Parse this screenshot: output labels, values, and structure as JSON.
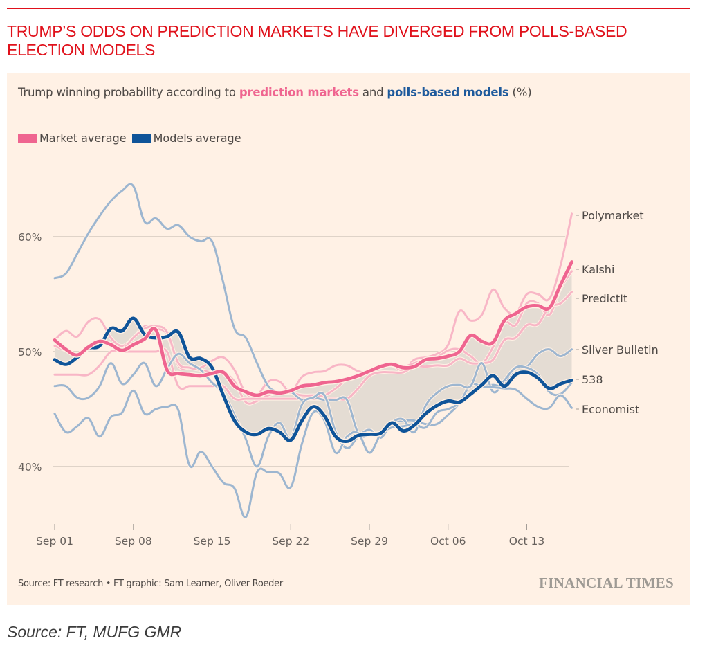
{
  "headline": "TRUMP’S ODDS ON PREDICTION MARKETS HAVE DIVERGED FROM POLLS-BASED ELECTION MODELS",
  "subtitle": {
    "prefix": "Trump winning probability according to ",
    "highlight_markets": "prediction markets",
    "middle": " and ",
    "highlight_models": "polls-based models",
    "suffix": " (%)"
  },
  "legend": [
    {
      "label": "Market average",
      "color": "#ef6590"
    },
    {
      "label": "Models average",
      "color": "#0f5499"
    }
  ],
  "colors": {
    "background": "#fff1e5",
    "headline": "#e0111b",
    "market_avg": "#ef6590",
    "market_individual": "#f8b6c6",
    "models_avg": "#0f5499",
    "models_individual": "#9db6d0",
    "gap_fill": "#e4dcd3",
    "gridline": "#ccc1b7"
  },
  "source_text": "Source: FT research • FT graphic: Sam Learner, Oliver Roeder",
  "ft_logo": "FINANCIAL TIMES",
  "outer_source": "Source: FT, MUFG GMR",
  "chart_data": {
    "type": "line",
    "title": "Trump winning probability according to prediction markets and polls-based models (%)",
    "xlabel": "",
    "ylabel": "",
    "x_unit": "days since Sep 01",
    "x_range": [
      0,
      46
    ],
    "ylim": [
      35,
      63
    ],
    "yticks": [
      40,
      50,
      60
    ],
    "ytick_labels": [
      "40%",
      "50%",
      "60%"
    ],
    "xticks": [
      0,
      7,
      14,
      21,
      28,
      35,
      42
    ],
    "xtick_labels": [
      "Sep 01",
      "Sep 08",
      "Sep 15",
      "Sep 22",
      "Sep 29",
      "Oct 06",
      "Oct 13"
    ],
    "grid": "horizontal",
    "legend_position": "top-left",
    "shaded_band": "between Market average and Models average",
    "series": [
      {
        "name": "Polymarket",
        "group": "market",
        "x": [
          0,
          1,
          2,
          3,
          4,
          5,
          6,
          7,
          8,
          9,
          10,
          11,
          12,
          13,
          14,
          15,
          16,
          17,
          18,
          19,
          20,
          21,
          22,
          23,
          24,
          25,
          26,
          27,
          28,
          29,
          30,
          31,
          32,
          33,
          34,
          35,
          36,
          37,
          38,
          39,
          40,
          41,
          42,
          43,
          44,
          45,
          46
        ],
        "values": [
          51,
          51.8,
          51.3,
          52.6,
          52.8,
          51.2,
          50.5,
          51.2,
          52.2,
          52,
          51.5,
          48.8,
          48.6,
          48.6,
          49.2,
          49.5,
          48.4,
          46.4,
          46.2,
          47.4,
          47.4,
          46.5,
          47.8,
          48.2,
          48.3,
          48.8,
          48.8,
          48.3,
          48.2,
          48.7,
          48.8,
          48.4,
          49.3,
          49.5,
          49.8,
          50.6,
          53.5,
          52.7,
          53.2,
          55.4,
          53.8,
          53.3,
          55,
          55,
          54.6,
          57.5,
          62
        ]
      },
      {
        "name": "Kalshi",
        "group": "market",
        "x": [
          0,
          1,
          2,
          3,
          4,
          5,
          6,
          7,
          8,
          9,
          10,
          11,
          12,
          13,
          14,
          15,
          16,
          17,
          18,
          19,
          20,
          21,
          22,
          23,
          24,
          25,
          26,
          27,
          28,
          29,
          30,
          31,
          32,
          33,
          34,
          35,
          36,
          37,
          38,
          39,
          40,
          41,
          42,
          43,
          44,
          45,
          46
        ],
        "values": [
          50.5,
          50.1,
          49.8,
          50.4,
          50.8,
          50.5,
          50.2,
          51.2,
          52,
          52.2,
          51.7,
          49,
          48.6,
          48.4,
          48.2,
          48.2,
          47.4,
          45.6,
          45.7,
          46.2,
          46.4,
          46.4,
          46.2,
          46.2,
          46.2,
          46.8,
          47.6,
          48,
          48.4,
          48.6,
          48.9,
          48.7,
          49,
          49.3,
          49.5,
          50.1,
          50.2,
          49.6,
          49,
          50.4,
          52.5,
          52.3,
          54.2,
          54.2,
          53.2,
          55.5,
          57.0
        ]
      },
      {
        "name": "PredictIt",
        "group": "market",
        "x": [
          0,
          1,
          2,
          3,
          4,
          5,
          6,
          7,
          8,
          9,
          10,
          11,
          12,
          13,
          14,
          15,
          16,
          17,
          18,
          19,
          20,
          21,
          22,
          23,
          24,
          25,
          26,
          27,
          28,
          29,
          30,
          31,
          32,
          33,
          34,
          35,
          36,
          37,
          38,
          39,
          40,
          41,
          42,
          43,
          44,
          45,
          46
        ],
        "values": [
          48,
          48,
          48,
          48,
          48.8,
          50,
          50,
          50,
          50,
          50,
          50,
          47,
          47,
          47,
          47,
          47,
          45.9,
          45.9,
          45.9,
          45.9,
          45.9,
          45.9,
          45.9,
          45.9,
          45.9,
          45.9,
          45.9,
          46.8,
          47.9,
          48.2,
          48.2,
          48.2,
          48.7,
          48.7,
          48.8,
          48.8,
          49.4,
          49,
          49,
          49.3,
          51,
          51.2,
          52.3,
          52.4,
          53.9,
          54.2,
          55.2
        ]
      },
      {
        "name": "Silver Bulletin",
        "group": "models",
        "x": [
          0,
          1,
          2,
          3,
          4,
          5,
          6,
          7,
          8,
          9,
          10,
          11,
          12,
          13,
          14,
          15,
          16,
          17,
          18,
          19,
          20,
          21,
          22,
          23,
          24,
          25,
          26,
          27,
          28,
          29,
          30,
          31,
          32,
          33,
          34,
          35,
          36,
          37,
          38,
          39,
          40,
          41,
          42,
          43,
          44,
          45,
          46
        ],
        "values": [
          56.4,
          56.8,
          58.5,
          60.3,
          61.8,
          63.1,
          64,
          64.4,
          61.3,
          61.6,
          60.7,
          61,
          60,
          59.6,
          59.6,
          56,
          52,
          51.2,
          49,
          47,
          46.5,
          46.5,
          45.8,
          46,
          45.8,
          45.8,
          45.8,
          42.9,
          42.7,
          43,
          43.8,
          44,
          44,
          43.7,
          43.7,
          44.5,
          45.5,
          47.1,
          47,
          47.1,
          47.1,
          48.6,
          48.7,
          49.8,
          50.2,
          49.6,
          50.2
        ]
      },
      {
        "name": "538",
        "group": "models",
        "x": [
          0,
          1,
          2,
          3,
          4,
          5,
          6,
          7,
          8,
          9,
          10,
          11,
          12,
          13,
          14,
          15,
          16,
          17,
          18,
          19,
          20,
          21,
          22,
          23,
          24,
          25,
          26,
          27,
          28,
          29,
          30,
          31,
          32,
          33,
          34,
          35,
          36,
          37,
          38,
          39,
          40,
          41,
          42,
          43,
          44,
          45,
          46
        ],
        "values": [
          47,
          47,
          46,
          46,
          47,
          49,
          47.2,
          48,
          49,
          47,
          48.5,
          49.8,
          49,
          48.4,
          47.3,
          46.4,
          44.5,
          42.4,
          40,
          42.6,
          43.8,
          42.5,
          45.4,
          46,
          46.2,
          43,
          41.6,
          42.6,
          43.2,
          42.5,
          43.8,
          44.1,
          43,
          45.3,
          46.4,
          47,
          47.1,
          47,
          49,
          46.5,
          47.5,
          48.6,
          48.6,
          48,
          46.5,
          46.3,
          47.3
        ]
      },
      {
        "name": "Economist",
        "group": "models",
        "x": [
          0,
          1,
          2,
          3,
          4,
          5,
          6,
          7,
          8,
          9,
          10,
          11,
          12,
          13,
          14,
          15,
          16,
          17,
          18,
          19,
          20,
          21,
          22,
          23,
          24,
          25,
          26,
          27,
          28,
          29,
          30,
          31,
          32,
          33,
          34,
          35,
          36,
          37,
          38,
          39,
          40,
          41,
          42,
          43,
          44,
          45,
          46
        ],
        "values": [
          44.6,
          43,
          43.5,
          44.2,
          42.6,
          44.3,
          44.7,
          46.6,
          44.6,
          45,
          45.2,
          44.9,
          40.1,
          41.3,
          40,
          38.6,
          38.1,
          35.6,
          39.5,
          39.5,
          39.4,
          38.2,
          42,
          44.7,
          44,
          41.2,
          42.6,
          42.9,
          41.2,
          42.8,
          43.4,
          43.5,
          43.7,
          43.4,
          44.7,
          45,
          45.5,
          46.4,
          46.9,
          46.9,
          46.8,
          46.7,
          45.9,
          45.2,
          45.1,
          46.2,
          45.1
        ]
      },
      {
        "name": "Market average",
        "group": "market_avg",
        "x": [
          0,
          1,
          2,
          3,
          4,
          5,
          6,
          7,
          8,
          9,
          10,
          11,
          12,
          13,
          14,
          15,
          16,
          17,
          18,
          19,
          20,
          21,
          22,
          23,
          24,
          25,
          26,
          27,
          28,
          29,
          30,
          31,
          32,
          33,
          34,
          35,
          36,
          37,
          38,
          39,
          40,
          41,
          42,
          43,
          44,
          45,
          46
        ],
        "values": [
          51,
          50.2,
          49.7,
          50.4,
          50.9,
          50.6,
          50.1,
          50.6,
          51.1,
          51.9,
          48.4,
          48.1,
          48,
          47.9,
          48.1,
          48.2,
          47,
          46.5,
          46.2,
          46.5,
          46.4,
          46.6,
          47,
          47.1,
          47.3,
          47.4,
          47.6,
          47.9,
          48.3,
          48.7,
          48.9,
          48.6,
          48.7,
          49.3,
          49.4,
          49.6,
          50,
          51.4,
          50.9,
          50.8,
          52.7,
          53.3,
          53.9,
          54,
          53.8,
          55.8,
          57.8
        ]
      },
      {
        "name": "Models average",
        "group": "models_avg",
        "x": [
          0,
          1,
          2,
          3,
          4,
          5,
          6,
          7,
          8,
          9,
          10,
          11,
          12,
          13,
          14,
          15,
          16,
          17,
          18,
          19,
          20,
          21,
          22,
          23,
          24,
          25,
          26,
          27,
          28,
          29,
          30,
          31,
          32,
          33,
          34,
          35,
          36,
          37,
          38,
          39,
          40,
          41,
          42,
          43,
          44,
          45,
          46
        ],
        "values": [
          49.3,
          48.9,
          49.5,
          50.3,
          50.5,
          52,
          51.8,
          52.9,
          51.5,
          51.2,
          51.3,
          51.7,
          49.5,
          49.4,
          48.6,
          46.2,
          44,
          43,
          42.8,
          43.3,
          43,
          42.3,
          44,
          45.2,
          44.4,
          42.6,
          42.2,
          42.7,
          42.8,
          42.9,
          43.8,
          43.1,
          43.6,
          44.6,
          45.3,
          45.7,
          45.6,
          46.3,
          47.1,
          47.9,
          47,
          48,
          48.2,
          47.7,
          46.8,
          47.2,
          47.5
        ]
      }
    ]
  }
}
